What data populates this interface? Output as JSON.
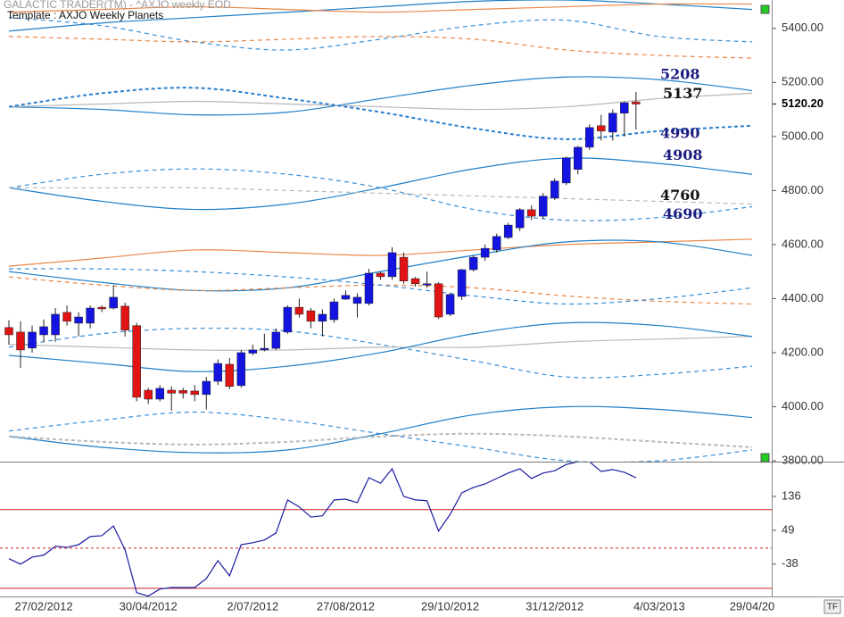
{
  "header": {
    "product": "GALACTIC TRADER(TM) - ^AXJO weekly EOD",
    "template": "Template : AXJO Weekly Planets"
  },
  "button": "TF",
  "chart_data": [
    {
      "type": "candlestick",
      "categories": [
        null,
        null,
        null,
        "27/02/2012",
        null,
        null,
        null,
        null,
        null,
        null,
        null,
        null,
        "30/04/2012",
        null,
        null,
        null,
        null,
        null,
        null,
        null,
        null,
        "2/07/2012",
        null,
        null,
        null,
        null,
        null,
        null,
        null,
        "27/08/2012",
        null,
        null,
        null,
        null,
        null,
        null,
        null,
        null,
        "29/10/2012",
        null,
        null,
        null,
        null,
        null,
        null,
        null,
        null,
        "31/12/2012",
        null,
        null,
        null,
        null,
        null,
        null,
        null,
        null,
        "4/03/2013",
        null,
        null,
        null,
        null,
        null,
        null,
        null,
        "29/04/20"
      ],
      "open": [
        4293,
        4276,
        4217,
        4266,
        4266,
        4349,
        4309,
        4309,
        4368,
        4365,
        4372,
        4300,
        4061,
        4028,
        4061,
        4060,
        4058,
        4045,
        4094,
        4157,
        4078,
        4198,
        4210,
        4216,
        4276,
        4368,
        4355,
        4316,
        4322,
        4398,
        4382,
        4382,
        4494,
        4481,
        4553,
        4474,
        4450,
        4455,
        4342,
        4408,
        4507,
        4553,
        4580,
        4626,
        4662,
        4729,
        4705,
        4772,
        4828,
        4878,
        4960,
        5040,
        5016,
        5086,
        5128,
        null,
        null,
        null,
        null,
        null,
        null,
        null,
        null,
        null,
        null
      ],
      "high": [
        4320,
        4316,
        4300,
        4323,
        4365,
        4375,
        4350,
        4375,
        4375,
        4450,
        4385,
        4310,
        4070,
        4080,
        4075,
        4070,
        4080,
        4110,
        4175,
        4180,
        4210,
        4230,
        4270,
        4290,
        4375,
        4400,
        4365,
        4360,
        4400,
        4430,
        4420,
        4510,
        4500,
        4590,
        4570,
        4480,
        4500,
        4460,
        4420,
        4510,
        4560,
        4600,
        4640,
        4680,
        4735,
        4745,
        4790,
        4845,
        4925,
        4965,
        5045,
        5080,
        5100,
        5130,
        5165,
        null,
        null,
        null,
        null,
        null,
        null,
        null,
        null,
        null,
        null
      ],
      "low": [
        4230,
        4144,
        4200,
        4240,
        4240,
        4300,
        4260,
        4290,
        4350,
        4360,
        4260,
        4020,
        4010,
        4020,
        3985,
        4030,
        4020,
        3990,
        4080,
        4065,
        4070,
        4190,
        4205,
        4210,
        4270,
        4330,
        4290,
        4260,
        4310,
        4395,
        4330,
        4375,
        4470,
        4470,
        4455,
        4445,
        4440,
        4325,
        4335,
        4395,
        4500,
        4540,
        4570,
        4620,
        4650,
        4690,
        4695,
        4765,
        4820,
        4860,
        4950,
        4985,
        4985,
        5000,
        5026,
        null,
        null,
        null,
        null,
        null,
        null,
        null,
        null,
        null,
        null
      ],
      "close": [
        4266,
        4210,
        4276,
        4296,
        4342,
        4316,
        4332,
        4365,
        4362,
        4405,
        4283,
        4035,
        4028,
        4068,
        4050,
        4050,
        4045,
        4094,
        4160,
        4075,
        4200,
        4210,
        4216,
        4276,
        4368,
        4342,
        4316,
        4342,
        4388,
        4412,
        4405,
        4494,
        4481,
        4570,
        4465,
        4455,
        4455,
        4332,
        4415,
        4507,
        4553,
        4586,
        4630,
        4672,
        4729,
        4705,
        4779,
        4835,
        4921,
        4960,
        5033,
        5020,
        5086,
        5125,
        5120,
        null,
        null,
        null,
        null,
        null,
        null,
        null,
        null,
        null,
        null
      ],
      "up_color": "#1414e0",
      "down_color": "#e01414",
      "ylim": [
        3800,
        5505
      ],
      "yticks": [
        {
          "value": 3800,
          "label": "3800.00"
        },
        {
          "value": 4000,
          "label": "4000.00"
        },
        {
          "value": 4200,
          "label": "4200.00"
        },
        {
          "value": 4400,
          "label": "4400.00"
        },
        {
          "value": 4600,
          "label": "4600.00"
        },
        {
          "value": 4800,
          "label": "4800.00"
        },
        {
          "value": 5000,
          "label": "5000.00"
        },
        {
          "value": 5200,
          "label": "5200.00"
        },
        {
          "value": 5400,
          "label": "5400.00"
        }
      ],
      "last_price": {
        "value": 5120.2,
        "label": "5120.20"
      },
      "annotations": [
        {
          "value": 5208,
          "color": "#1a1a80"
        },
        {
          "value": 5137,
          "color": "#111111"
        },
        {
          "value": 4990,
          "color": "#1a1a80"
        },
        {
          "value": 4908,
          "color": "#1a1a80"
        },
        {
          "value": 4760,
          "color": "#111111"
        },
        {
          "value": 4690,
          "color": "#1a1a80"
        }
      ],
      "curves": [
        {
          "color": "#1e7fc8",
          "style": "solid",
          "x": [
            0,
            8,
            16,
            24,
            32,
            40,
            48,
            56,
            64
          ],
          "values": [
            5390,
            5420,
            5440,
            5460,
            5480,
            5500,
            5505,
            5490,
            5470
          ]
        },
        {
          "color": "#e8874a",
          "style": "solid",
          "x": [
            0,
            8,
            16,
            24,
            32,
            40,
            48,
            56,
            64
          ],
          "values": [
            5460,
            5470,
            5480,
            5470,
            5460,
            5470,
            5480,
            5490,
            5490
          ]
        },
        {
          "color": "#3b8fd6",
          "style": "dashed",
          "x": [
            0,
            8,
            16,
            24,
            32,
            40,
            48,
            56,
            64
          ],
          "values": [
            5440,
            5410,
            5350,
            5320,
            5360,
            5410,
            5430,
            5370,
            5350
          ]
        },
        {
          "color": "#e8874a",
          "style": "dashed",
          "x": [
            0,
            8,
            16,
            24,
            32,
            40,
            48,
            56,
            64
          ],
          "values": [
            5370,
            5360,
            5350,
            5360,
            5370,
            5360,
            5320,
            5300,
            5290
          ]
        },
        {
          "color": "#1e7fc8",
          "style": "solid",
          "x": [
            0,
            8,
            16,
            24,
            32,
            40,
            48,
            56,
            64
          ],
          "values": [
            5110,
            5100,
            5080,
            5090,
            5140,
            5190,
            5220,
            5210,
            5170
          ]
        },
        {
          "color": "#b8b8b8",
          "style": "solid",
          "x": [
            0,
            8,
            16,
            24,
            32,
            40,
            48,
            56,
            64
          ],
          "values": [
            5110,
            5120,
            5130,
            5120,
            5110,
            5100,
            5110,
            5140,
            5160
          ]
        },
        {
          "color": "#2a7fd0",
          "style": "bold-dashed",
          "x": [
            0,
            8,
            16,
            24,
            32,
            40,
            48,
            56,
            64
          ],
          "values": [
            5110,
            5160,
            5180,
            5140,
            5090,
            5030,
            4990,
            5020,
            5040
          ]
        },
        {
          "color": "#1e7fc8",
          "style": "solid",
          "x": [
            0,
            8,
            16,
            24,
            32,
            40,
            48,
            56,
            64
          ],
          "values": [
            4810,
            4760,
            4730,
            4750,
            4810,
            4880,
            4920,
            4900,
            4860
          ]
        },
        {
          "color": "#3b8fd6",
          "style": "dashed",
          "x": [
            0,
            8,
            16,
            24,
            32,
            40,
            48,
            56,
            64
          ],
          "values": [
            4810,
            4860,
            4880,
            4860,
            4810,
            4730,
            4690,
            4700,
            4740
          ]
        },
        {
          "color": "#b8b8b8",
          "style": "dashed",
          "x": [
            0,
            8,
            16,
            24,
            32,
            40,
            48,
            56,
            64
          ],
          "values": [
            4810,
            4810,
            4810,
            4800,
            4790,
            4780,
            4770,
            4760,
            4750
          ]
        },
        {
          "color": "#e8874a",
          "style": "solid",
          "x": [
            0,
            8,
            16,
            24,
            32,
            40,
            48,
            56,
            64
          ],
          "values": [
            4520,
            4550,
            4580,
            4570,
            4560,
            4580,
            4600,
            4610,
            4620
          ]
        },
        {
          "color": "#1e7fc8",
          "style": "solid",
          "x": [
            0,
            8,
            16,
            24,
            32,
            40,
            48,
            56,
            64
          ],
          "values": [
            4500,
            4460,
            4430,
            4440,
            4500,
            4560,
            4610,
            4610,
            4560
          ]
        },
        {
          "color": "#e8874a",
          "style": "dashed",
          "x": [
            0,
            8,
            16,
            24,
            32,
            40,
            48,
            56,
            64
          ],
          "values": [
            4480,
            4450,
            4430,
            4440,
            4450,
            4440,
            4410,
            4390,
            4380
          ]
        },
        {
          "color": "#3b8fd6",
          "style": "dashed",
          "x": [
            0,
            8,
            16,
            24,
            32,
            40,
            48,
            56,
            64
          ],
          "values": [
            4510,
            4510,
            4500,
            4480,
            4450,
            4410,
            4380,
            4400,
            4440
          ]
        },
        {
          "color": "#3b8fd6",
          "style": "dashed",
          "x": [
            0,
            8,
            16,
            24,
            32,
            40,
            48,
            56,
            64
          ],
          "values": [
            4220,
            4270,
            4290,
            4280,
            4230,
            4170,
            4110,
            4120,
            4150
          ]
        },
        {
          "color": "#b8b8b8",
          "style": "solid",
          "x": [
            0,
            8,
            16,
            24,
            32,
            40,
            48,
            56,
            64
          ],
          "values": [
            4230,
            4220,
            4210,
            4210,
            4220,
            4220,
            4240,
            4250,
            4260
          ]
        },
        {
          "color": "#1e7fc8",
          "style": "solid",
          "x": [
            0,
            8,
            16,
            24,
            32,
            40,
            48,
            56,
            64
          ],
          "values": [
            4190,
            4160,
            4130,
            4150,
            4200,
            4270,
            4310,
            4300,
            4260
          ]
        },
        {
          "color": "#1e7fc8",
          "style": "solid",
          "x": [
            0,
            8,
            16,
            24,
            32,
            40,
            48,
            56,
            64
          ],
          "values": [
            3890,
            3850,
            3830,
            3840,
            3900,
            3970,
            4000,
            3990,
            3960
          ]
        },
        {
          "color": "#b8b8b8",
          "style": "bold-dashed",
          "x": [
            0,
            8,
            16,
            24,
            32,
            40,
            48,
            56,
            64
          ],
          "values": [
            3890,
            3870,
            3860,
            3870,
            3890,
            3900,
            3890,
            3870,
            3850
          ]
        },
        {
          "color": "#3b8fd6",
          "style": "dashed",
          "x": [
            0,
            8,
            16,
            24,
            32,
            40,
            48,
            56,
            64
          ],
          "values": [
            3910,
            3950,
            3980,
            3950,
            3900,
            3850,
            3800,
            3800,
            3840
          ]
        }
      ]
    },
    {
      "type": "line",
      "values": [
        -24,
        -38,
        -20,
        -15,
        8,
        5,
        12,
        33,
        35,
        60,
        -1,
        -111,
        -120,
        -102,
        -98,
        -98,
        -98,
        -75,
        -29,
        -68,
        12,
        17,
        24,
        42,
        127,
        109,
        83,
        86,
        127,
        129,
        120,
        184,
        170,
        207,
        136,
        127,
        125,
        47,
        90,
        145,
        159,
        168,
        182,
        196,
        207,
        182,
        196,
        202,
        218,
        225,
        225,
        200,
        205,
        198,
        184,
        null,
        null,
        null,
        null,
        null,
        null,
        null,
        null,
        null,
        null
      ],
      "color": "#1a1aa0",
      "ylim": [
        -121,
        223
      ],
      "yticks": [
        -38,
        49,
        136
      ],
      "levels": [
        102,
        3,
        -100
      ],
      "level_styles": [
        "solid",
        "dotted",
        "solid"
      ],
      "level_color": "#cc2222"
    }
  ]
}
